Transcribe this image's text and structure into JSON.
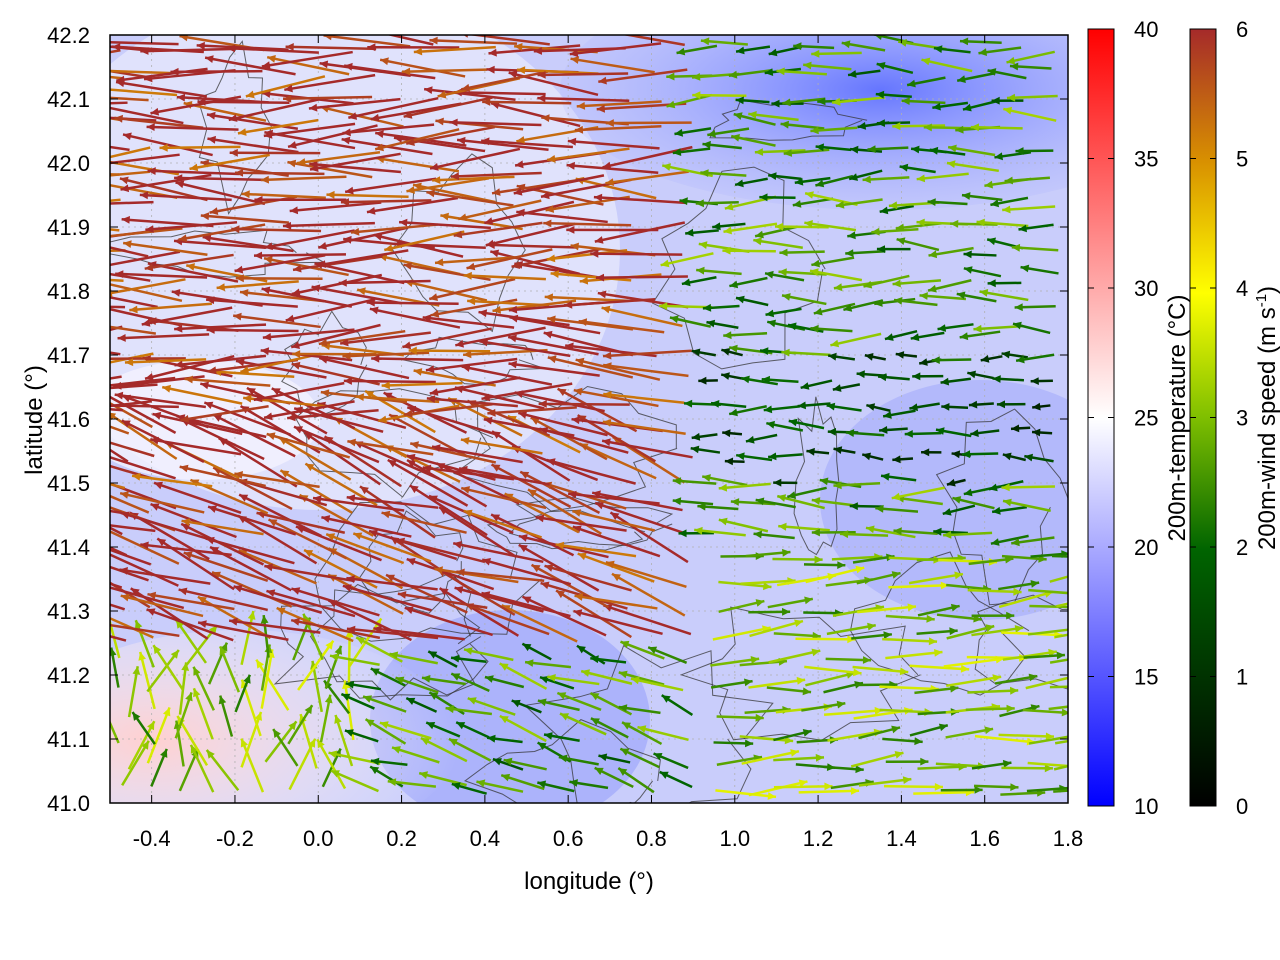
{
  "chart_data": {
    "type": "vector-field",
    "xlabel": "longitude (°)",
    "ylabel": "latitude (°)",
    "xlim": [
      -0.5,
      1.8
    ],
    "ylim": [
      41.0,
      42.2
    ],
    "x_ticks": [
      "-0.4",
      "-0.2",
      "0.0",
      "0.2",
      "0.4",
      "0.6",
      "0.8",
      "1.0",
      "1.2",
      "1.4",
      "1.6",
      "1.8"
    ],
    "x_tick_values": [
      -0.4,
      -0.2,
      0.0,
      0.2,
      0.4,
      0.6,
      0.8,
      1.0,
      1.2,
      1.4,
      1.6,
      1.8
    ],
    "y_ticks": [
      "41.0",
      "41.1",
      "41.2",
      "41.3",
      "41.4",
      "41.5",
      "41.6",
      "41.7",
      "41.8",
      "41.9",
      "42.0",
      "42.1",
      "42.2"
    ],
    "y_tick_values": [
      41.0,
      41.1,
      41.2,
      41.3,
      41.4,
      41.5,
      41.6,
      41.7,
      41.8,
      41.9,
      42.0,
      42.1,
      42.2
    ],
    "grid": true,
    "colorbars": [
      {
        "label": "200m-temperature (°C)",
        "range": [
          10,
          40
        ],
        "ticks": [
          "10",
          "15",
          "20",
          "25",
          "30",
          "35",
          "40"
        ],
        "tick_values": [
          10,
          15,
          20,
          25,
          30,
          35,
          40
        ],
        "colors": [
          "#0000ff",
          "#ffffff",
          "#ff0000"
        ]
      },
      {
        "label": "200m-wind speed (m s",
        "label_sup": "-1",
        "label_close": ")",
        "range": [
          0,
          6
        ],
        "ticks": [
          "0",
          "1",
          "2",
          "3",
          "4",
          "5",
          "6"
        ],
        "tick_values": [
          0,
          1,
          2,
          3,
          4,
          5,
          6
        ],
        "colors": [
          "#000000",
          "#006400",
          "#7fbf00",
          "#ffff00",
          "#d89000",
          "#a52a2a"
        ]
      }
    ],
    "temperature_regions": [
      {
        "name": "west-warm-zone",
        "lon": [
          -0.5,
          0.3
        ],
        "lat": [
          41.0,
          41.25
        ],
        "temp": 25.5
      },
      {
        "name": "north-cool-zone",
        "lon": [
          0.6,
          1.8
        ],
        "lat": [
          41.9,
          42.2
        ],
        "temp": 16
      },
      {
        "name": "background",
        "temp": 20
      }
    ],
    "wind_regions": [
      {
        "name": "west-strong-flow",
        "lon": [
          -0.5,
          0.9
        ],
        "lat": [
          41.25,
          42.2
        ],
        "speed": 6,
        "direction": "westward"
      },
      {
        "name": "northeast-mixed",
        "lon": [
          0.9,
          1.8
        ],
        "lat": [
          41.7,
          42.2
        ],
        "speed": 2.5,
        "direction": "westward"
      },
      {
        "name": "east-calm",
        "lon": [
          0.9,
          1.8
        ],
        "lat": [
          41.5,
          41.7
        ],
        "speed": 1.5,
        "direction": "westward"
      },
      {
        "name": "southeast-eastward",
        "lon": [
          0.9,
          1.8
        ],
        "lat": [
          41.0,
          41.4
        ],
        "speed": 3,
        "direction": "eastward"
      },
      {
        "name": "southwest-mixed",
        "lon": [
          -0.5,
          0.1
        ],
        "lat": [
          41.0,
          41.25
        ],
        "speed": 3,
        "direction": "northward"
      }
    ]
  }
}
